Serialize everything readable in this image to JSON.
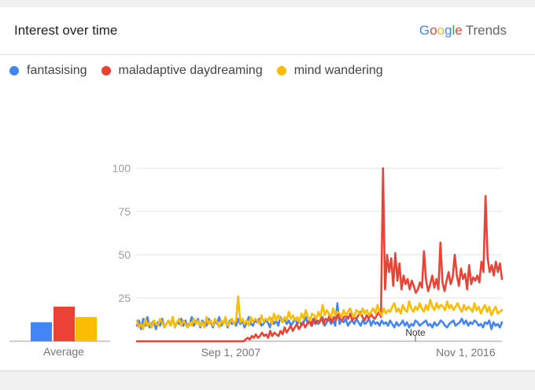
{
  "header": {
    "title": "Interest over time",
    "brand": {
      "g1": "G",
      "g2": "o",
      "g3": "o",
      "g4": "g",
      "g5": "l",
      "g6": "e",
      "trends": "Trends"
    }
  },
  "note": "Note",
  "colors": {
    "fantasising": "#4285f4",
    "maladaptive": "#ea4335",
    "mind": "#fbbc04"
  },
  "chart_data": {
    "type": "line",
    "xlabel": "",
    "ylabel": "",
    "ylim": [
      0,
      100
    ],
    "y_ticks": [
      "100",
      "75",
      "50",
      "25"
    ],
    "x_tick_labels": [
      {
        "label": "Sep 1, 2007",
        "x": "2007-09"
      },
      {
        "label": "Nov 1, 2016",
        "x": "2016-11"
      }
    ],
    "x_start": "2004-01",
    "x_end": "2018-04",
    "legend": "top-left",
    "grid": true,
    "average": {
      "label": "Average",
      "values": [
        11,
        20,
        14
      ]
    },
    "series": [
      {
        "name": "fantasising",
        "color": "#4285f4",
        "values": [
          9,
          12,
          7,
          13,
          9,
          14,
          8,
          10,
          12,
          7,
          11,
          9,
          13,
          8,
          10,
          12,
          9,
          14,
          8,
          11,
          10,
          13,
          9,
          12,
          8,
          10,
          14,
          9,
          11,
          13,
          8,
          12,
          10,
          9,
          13,
          11,
          8,
          12,
          10,
          14,
          9,
          11,
          13,
          8,
          12,
          10,
          11,
          9,
          13,
          10,
          12,
          8,
          11,
          14,
          10,
          9,
          12,
          11,
          13,
          9,
          10,
          12,
          11,
          8,
          13,
          10,
          12,
          9,
          14,
          11,
          13,
          10,
          12,
          9,
          11,
          13,
          10,
          12,
          9,
          11,
          14,
          10,
          12,
          9,
          13,
          11,
          10,
          12,
          14,
          9,
          11,
          13,
          10,
          12,
          9,
          22,
          10,
          12,
          11,
          13,
          9,
          11,
          12,
          10,
          13,
          11,
          9,
          12,
          10,
          11,
          13,
          9,
          12,
          10,
          11,
          9,
          12,
          10,
          11,
          9,
          12,
          10,
          8,
          11,
          9,
          10,
          12,
          9,
          11,
          8,
          10,
          9,
          12,
          11,
          9,
          10,
          11,
          12,
          9,
          10,
          8,
          11,
          9,
          10,
          12,
          11,
          9,
          8,
          10,
          11,
          12,
          9,
          10,
          11,
          13,
          10,
          12,
          9,
          11,
          10,
          12,
          11,
          9,
          10,
          8,
          11,
          10,
          12,
          7,
          11,
          9,
          10,
          8,
          11
        ]
      },
      {
        "name": "maladaptive daydreaming",
        "color": "#ea4335",
        "values": [
          0,
          0,
          0,
          0,
          0,
          0,
          0,
          0,
          0,
          0,
          0,
          0,
          0,
          0,
          0,
          0,
          0,
          0,
          0,
          0,
          0,
          0,
          0,
          0,
          0,
          0,
          0,
          0,
          0,
          0,
          0,
          0,
          0,
          0,
          0,
          0,
          0,
          0,
          0,
          0,
          0,
          0,
          0,
          0,
          0,
          0,
          0,
          0,
          0,
          0,
          0,
          0,
          0,
          1,
          2,
          1,
          3,
          2,
          4,
          2,
          3,
          5,
          3,
          4,
          2,
          6,
          3,
          5,
          4,
          3,
          6,
          4,
          8,
          5,
          7,
          9,
          6,
          8,
          10,
          7,
          9,
          11,
          8,
          10,
          12,
          9,
          13,
          10,
          12,
          11,
          14,
          10,
          13,
          12,
          15,
          11,
          14,
          12,
          16,
          13,
          12,
          14,
          15,
          13,
          16,
          12,
          14,
          13,
          15,
          17,
          14,
          12,
          15,
          13,
          16,
          14,
          13,
          15,
          17,
          14,
          100,
          30,
          50,
          40,
          48,
          32,
          51,
          35,
          45,
          30,
          38,
          33,
          36,
          30,
          35,
          32,
          28,
          30,
          34,
          31,
          52,
          35,
          29,
          33,
          38,
          31,
          36,
          30,
          57,
          34,
          29,
          35,
          40,
          33,
          37,
          50,
          38,
          32,
          42,
          36,
          39,
          30,
          44,
          33,
          37,
          35,
          38,
          34,
          46,
          40,
          84,
          48,
          40,
          44,
          38,
          46,
          40,
          45,
          36
        ]
      },
      {
        "name": "mind wandering",
        "color": "#fbbc04",
        "values": [
          12,
          8,
          10,
          7,
          13,
          9,
          11,
          8,
          12,
          10,
          9,
          13,
          11,
          8,
          10,
          12,
          9,
          14,
          8,
          11,
          13,
          9,
          12,
          10,
          8,
          11,
          9,
          13,
          10,
          12,
          9,
          11,
          8,
          14,
          10,
          12,
          9,
          13,
          11,
          8,
          12,
          10,
          14,
          9,
          11,
          13,
          10,
          12,
          26,
          11,
          13,
          10,
          12,
          9,
          14,
          11,
          13,
          12,
          10,
          15,
          11,
          13,
          12,
          14,
          10,
          16,
          12,
          15,
          13,
          11,
          14,
          12,
          17,
          13,
          15,
          12,
          14,
          11,
          16,
          13,
          18,
          14,
          12,
          16,
          15,
          13,
          17,
          14,
          21,
          15,
          18,
          16,
          14,
          19,
          15,
          17,
          16,
          14,
          18,
          15,
          17,
          19,
          16,
          14,
          18,
          17,
          15,
          19,
          16,
          18,
          15,
          17,
          19,
          16,
          21,
          17,
          15,
          19,
          16,
          18,
          17,
          20,
          22,
          17,
          19,
          16,
          21,
          18,
          17,
          23,
          19,
          17,
          20,
          18,
          22,
          19,
          17,
          21,
          18,
          24,
          20,
          18,
          22,
          19,
          21,
          20,
          18,
          23,
          19,
          21,
          18,
          20,
          22,
          19,
          17,
          21,
          18,
          20,
          19,
          17,
          22,
          18,
          20,
          16,
          19,
          21,
          17,
          20,
          15,
          18,
          20,
          16,
          17,
          18
        ]
      }
    ]
  }
}
